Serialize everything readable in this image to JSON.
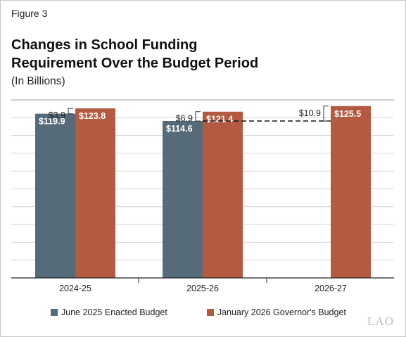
{
  "figure_label": "Figure 3",
  "title_lines": [
    "Changes in School Funding",
    "Requirement Over the Budget Period"
  ],
  "subtitle": "(In Billions)",
  "logo_text": "LAO",
  "colors": {
    "enacted": "#566b7a",
    "governor": "#b35a40"
  },
  "chart_data": {
    "type": "bar",
    "categories": [
      "2024-25",
      "2025-26",
      "2026-27"
    ],
    "series": [
      {
        "name": "June 2025 Enacted Budget",
        "values": [
          119.9,
          114.6,
          null
        ],
        "labels": [
          "$119.9",
          "$114.6",
          null
        ]
      },
      {
        "name": "January 2026 Governor's Budget",
        "values": [
          123.8,
          121.4,
          125.5
        ],
        "labels": [
          "$123.8",
          "$121.4",
          "$125.5"
        ]
      }
    ],
    "annotations": [
      {
        "category": "2024-25",
        "text": "$3.9",
        "from": 119.9,
        "to": 123.8
      },
      {
        "category": "2025-26",
        "text": "$6.9",
        "from": 114.6,
        "to": 121.4
      },
      {
        "category": "2026-27",
        "text": "$10.9",
        "from": 114.6,
        "to": 125.5
      }
    ],
    "reference_line": {
      "value": 114.6,
      "style": "dashed",
      "from_category": "2025-26",
      "to_category": "2026-27"
    },
    "grid": true,
    "legend_position": "bottom"
  }
}
